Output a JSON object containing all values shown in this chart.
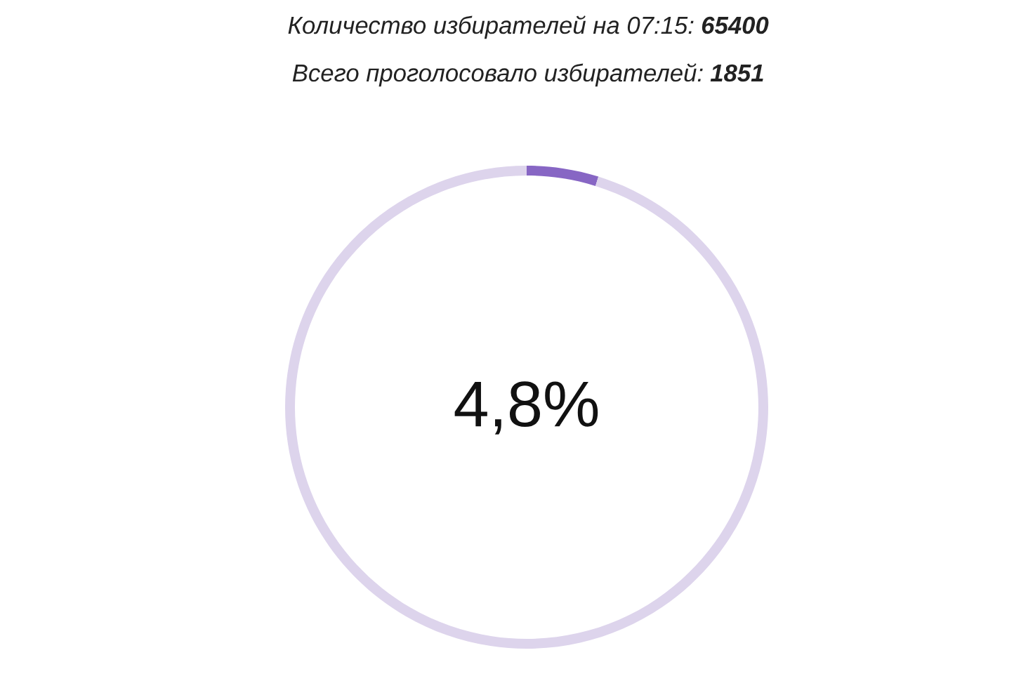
{
  "chart_data": {
    "type": "donut",
    "title": "Количество избирателей на 07:15: 65400",
    "subtitle": "Всего проголосовало избирателей: 1851",
    "categories": [
      null,
      null
    ],
    "values": [
      4.8,
      95.2
    ],
    "colors": [
      "#8766c4",
      "#ddd4ec"
    ],
    "annotations": [
      "4,8%"
    ]
  }
}
